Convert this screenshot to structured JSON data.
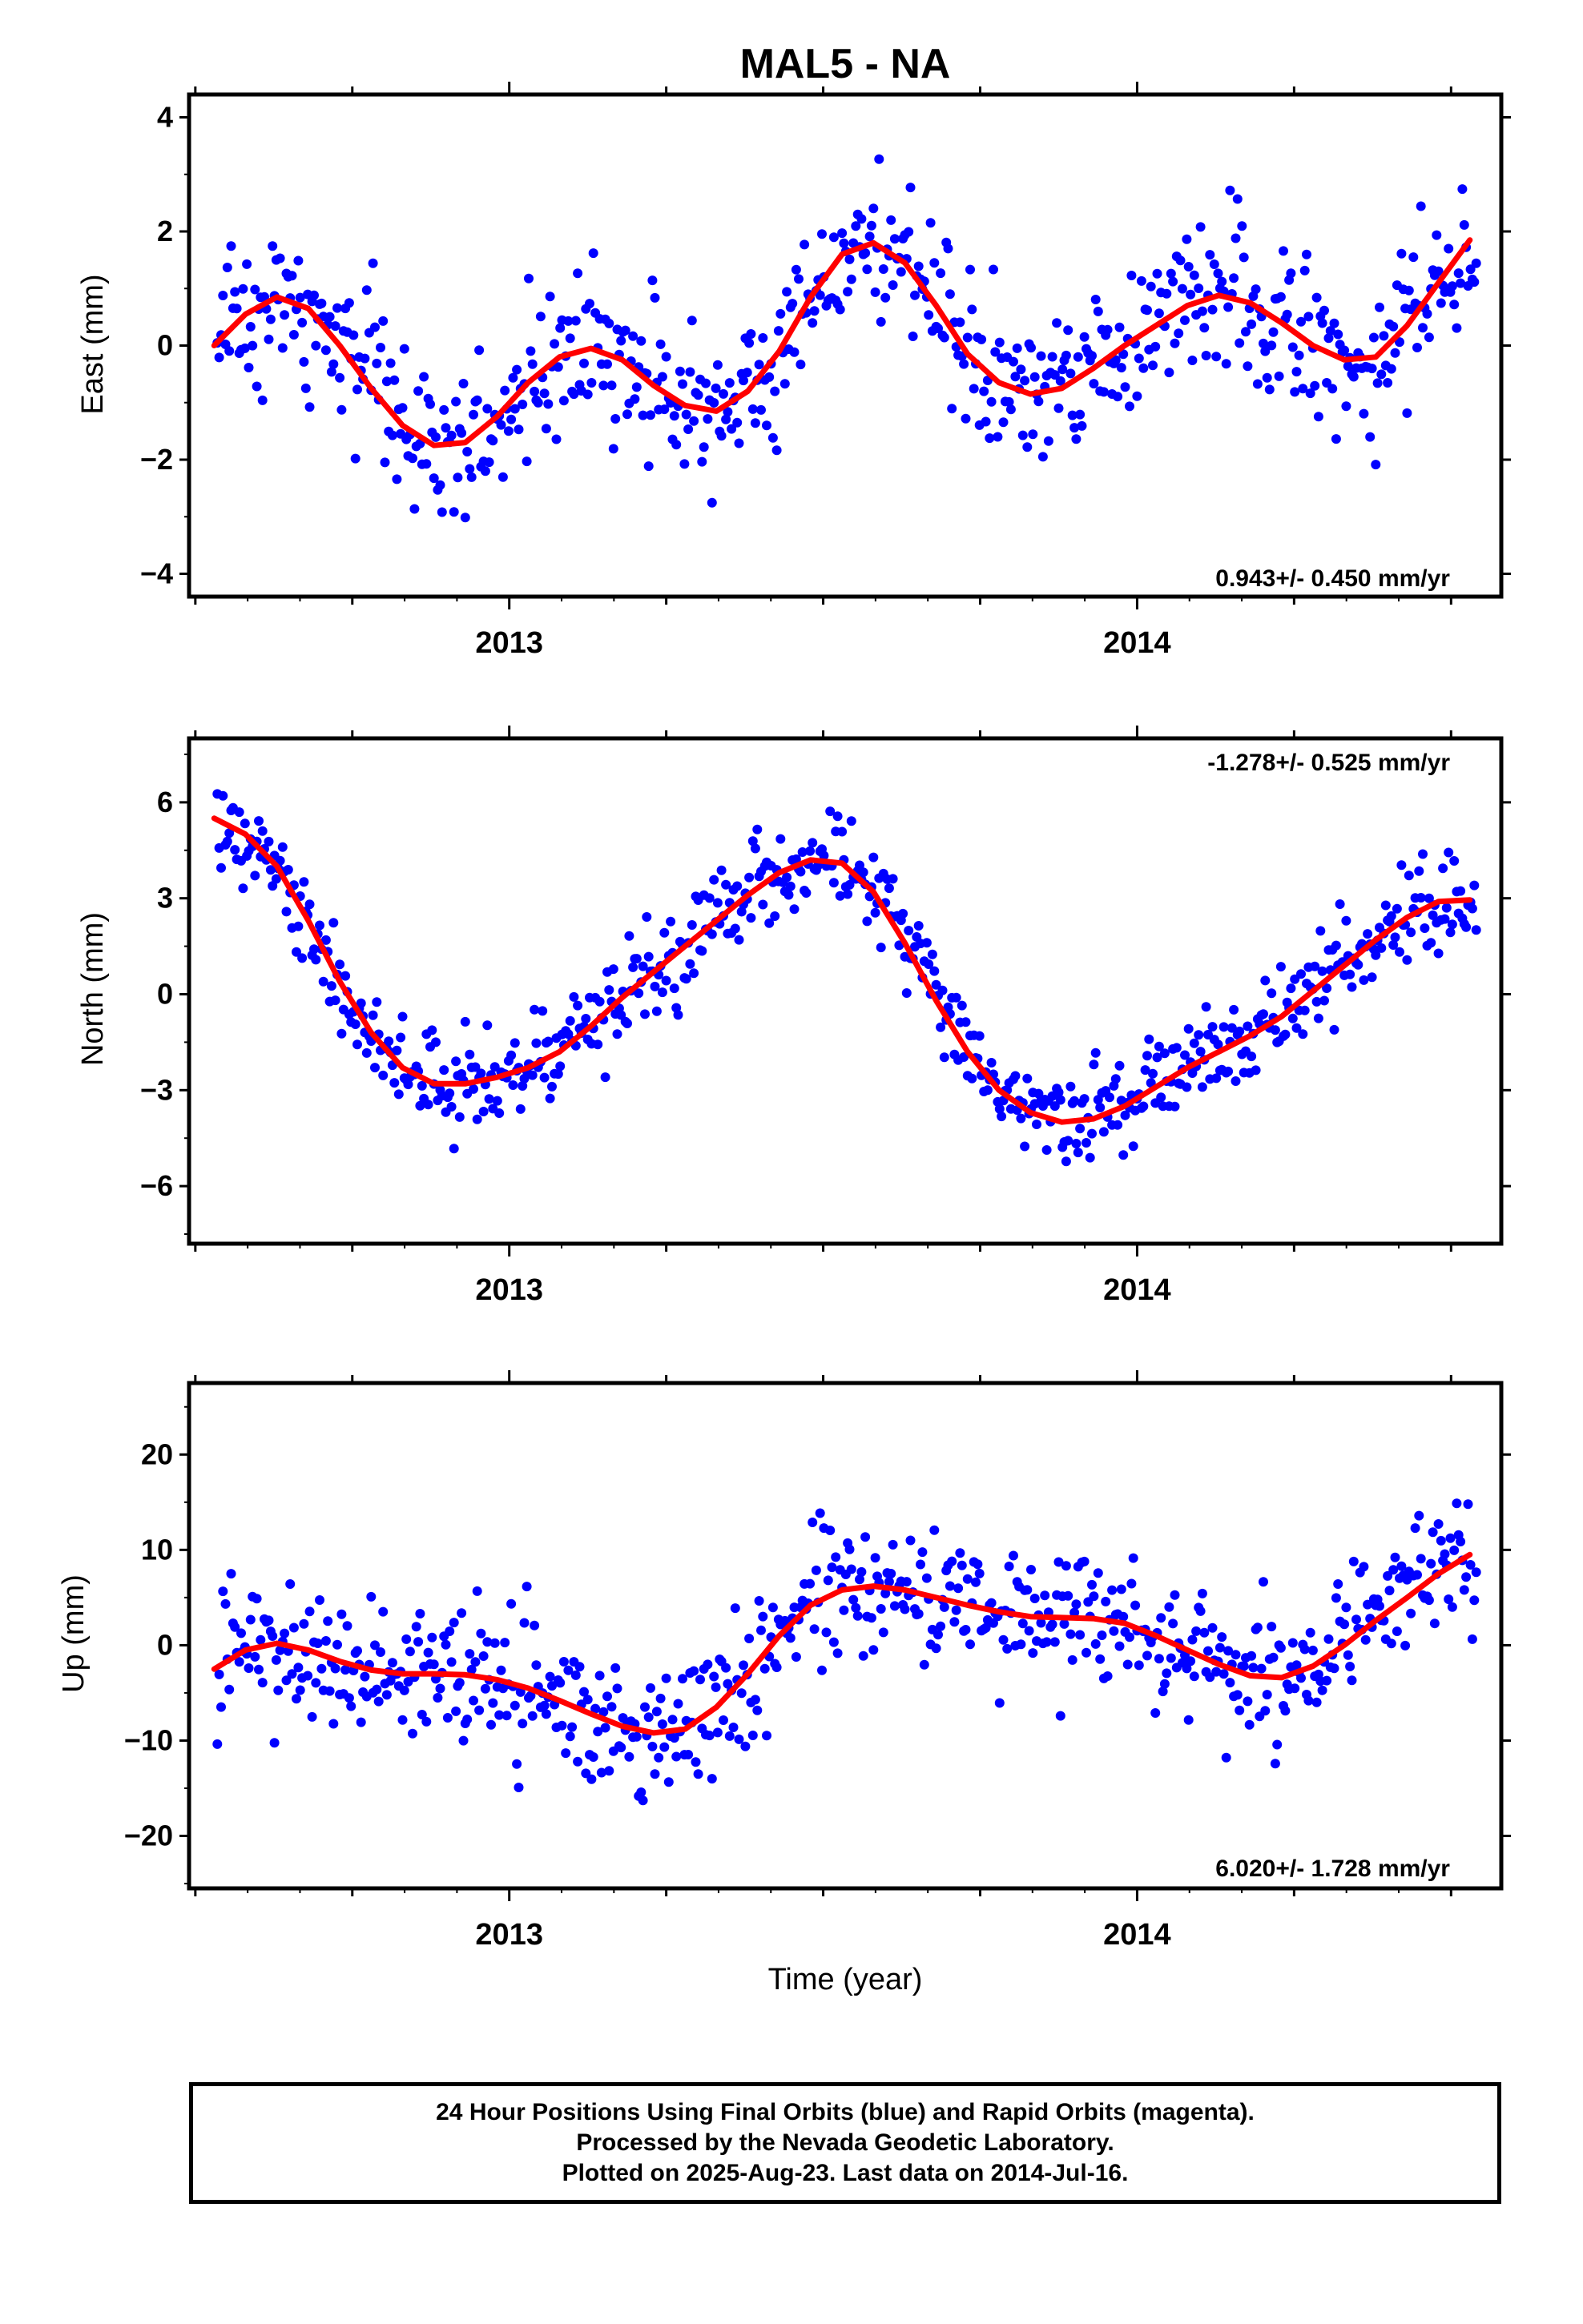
{
  "page": {
    "title": "MAL5 - NA"
  },
  "footer": {
    "lines": [
      "24 Hour Positions Using Final Orbits (blue) and Rapid Orbits (magenta).",
      "Processed by the Nevada Geodetic Laboratory.",
      "Plotted on 2025-Aug-23. Last data on 2014-Jul-16."
    ]
  },
  "colors": {
    "points": "#0000ff",
    "fit": "#ff0000",
    "axis": "#000000",
    "background": "#ffffff"
  },
  "chart_data": [
    {
      "type": "scatter",
      "title": "MAL5 - NA",
      "xlabel": "",
      "ylabel": "East (mm)",
      "xlim": [
        2012.49,
        2014.58
      ],
      "ylim": [
        -4.4,
        4.4
      ],
      "yticks": [
        -4,
        -2,
        0,
        2,
        4
      ],
      "xtick_labels": [
        "2013",
        "2014"
      ],
      "rate_label": "0.943+/- 0.450 mm/yr",
      "rate_position": "bottom-right",
      "series": [
        {
          "role": "fit",
          "x": [
            2012.53,
            2012.58,
            2012.63,
            2012.68,
            2012.73,
            2012.78,
            2012.83,
            2012.88,
            2012.93,
            2012.98,
            2013.03,
            2013.08,
            2013.13,
            2013.18,
            2013.23,
            2013.28,
            2013.33,
            2013.38,
            2013.43,
            2013.48,
            2013.53,
            2013.58,
            2013.63,
            2013.68,
            2013.73,
            2013.78,
            2013.83,
            2013.88,
            2013.93,
            2013.98,
            2014.03,
            2014.08,
            2014.13,
            2014.18,
            2014.23,
            2014.28,
            2014.33,
            2014.38,
            2014.43,
            2014.48,
            2014.53
          ],
          "y": [
            0.0,
            0.55,
            0.85,
            0.65,
            0.0,
            -0.75,
            -1.4,
            -1.75,
            -1.7,
            -1.25,
            -0.65,
            -0.2,
            -0.05,
            -0.25,
            -0.7,
            -1.05,
            -1.15,
            -0.8,
            -0.1,
            0.85,
            1.6,
            1.8,
            1.45,
            0.7,
            -0.15,
            -0.65,
            -0.85,
            -0.75,
            -0.4,
            0.0,
            0.35,
            0.7,
            0.88,
            0.75,
            0.4,
            0.0,
            -0.25,
            -0.2,
            0.35,
            1.1,
            1.85
          ]
        },
        {
          "role": "daily",
          "x": [],
          "y": []
        }
      ]
    },
    {
      "type": "scatter",
      "xlabel": "",
      "ylabel": "North (mm)",
      "xlim": [
        2012.49,
        2014.58
      ],
      "ylim": [
        -7.8,
        8.0
      ],
      "yticks": [
        -6,
        -3,
        0,
        3,
        6
      ],
      "xtick_labels": [
        "2013",
        "2014"
      ],
      "rate_label": "-1.278+/- 0.525 mm/yr",
      "rate_position": "top-right",
      "series": [
        {
          "role": "fit",
          "x": [
            2012.53,
            2012.58,
            2012.63,
            2012.68,
            2012.73,
            2012.78,
            2012.83,
            2012.88,
            2012.93,
            2012.98,
            2013.03,
            2013.08,
            2013.13,
            2013.18,
            2013.23,
            2013.28,
            2013.33,
            2013.38,
            2013.43,
            2013.48,
            2013.53,
            2013.58,
            2013.63,
            2013.68,
            2013.73,
            2013.78,
            2013.83,
            2013.88,
            2013.93,
            2013.98,
            2014.03,
            2014.08,
            2014.13,
            2014.18,
            2014.23,
            2014.28,
            2014.33,
            2014.38,
            2014.43,
            2014.48,
            2014.53
          ],
          "y": [
            5.5,
            5.0,
            4.0,
            2.3,
            0.4,
            -1.2,
            -2.3,
            -2.8,
            -2.8,
            -2.6,
            -2.3,
            -1.8,
            -1.0,
            -0.1,
            0.7,
            1.5,
            2.3,
            3.1,
            3.8,
            4.2,
            4.1,
            3.2,
            1.6,
            -0.2,
            -1.8,
            -3.0,
            -3.7,
            -4.0,
            -3.9,
            -3.5,
            -2.9,
            -2.3,
            -1.8,
            -1.3,
            -0.7,
            0.1,
            0.9,
            1.7,
            2.4,
            2.9,
            2.95
          ]
        },
        {
          "role": "daily",
          "x": [],
          "y": []
        }
      ]
    },
    {
      "type": "scatter",
      "xlabel": "Time (year)",
      "ylabel": "Up (mm)",
      "xlim": [
        2012.49,
        2014.58
      ],
      "ylim": [
        -25.5,
        27.5
      ],
      "yticks": [
        -20,
        -10,
        0,
        10,
        20
      ],
      "xtick_labels": [
        "2013",
        "2014"
      ],
      "rate_label": "6.020+/- 1.728 mm/yr",
      "rate_position": "bottom-right",
      "series": [
        {
          "role": "fit",
          "x": [
            2012.53,
            2012.58,
            2012.63,
            2012.68,
            2012.73,
            2012.78,
            2012.83,
            2012.88,
            2012.93,
            2012.98,
            2013.03,
            2013.08,
            2013.13,
            2013.18,
            2013.23,
            2013.28,
            2013.33,
            2013.38,
            2013.43,
            2013.48,
            2013.53,
            2013.58,
            2013.63,
            2013.68,
            2013.73,
            2013.78,
            2013.83,
            2013.88,
            2013.93,
            2013.98,
            2014.03,
            2014.08,
            2014.13,
            2014.18,
            2014.23,
            2014.28,
            2014.33,
            2014.38,
            2014.43,
            2014.48,
            2014.53
          ],
          "y": [
            -2.5,
            -0.5,
            0.2,
            -0.5,
            -1.7,
            -2.6,
            -3.0,
            -3.0,
            -3.1,
            -3.6,
            -4.5,
            -5.8,
            -7.2,
            -8.5,
            -9.2,
            -8.8,
            -6.5,
            -3.0,
            1.0,
            4.2,
            5.8,
            6.2,
            5.8,
            5.0,
            4.2,
            3.5,
            3.0,
            2.9,
            2.8,
            2.3,
            1.0,
            -0.5,
            -2.0,
            -3.2,
            -3.4,
            -2.2,
            0.0,
            2.6,
            5.0,
            7.5,
            9.5
          ]
        },
        {
          "role": "daily",
          "x": [],
          "y": []
        }
      ]
    }
  ]
}
